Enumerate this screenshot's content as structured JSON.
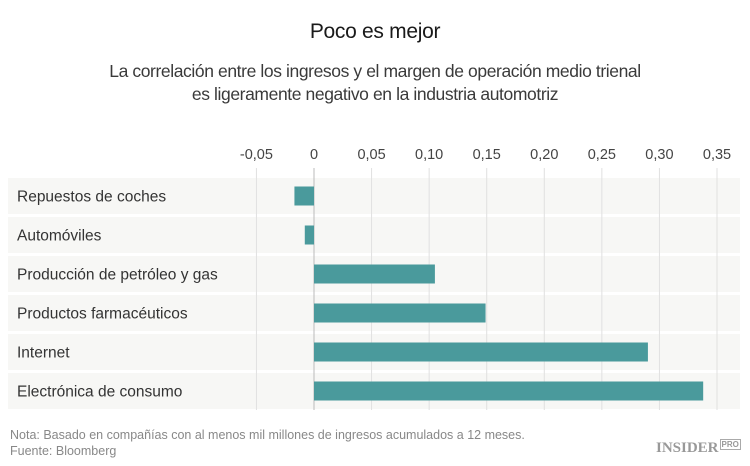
{
  "chart_data": {
    "type": "bar",
    "orientation": "horizontal",
    "title": "Poco es mejor",
    "subtitle": "La correlación entre los ingresos y el margen de operación medio trienal es ligeramente negativo en la industria automotriz",
    "categories": [
      "Repuestos de coches",
      "Automóviles",
      "Producción de petróleo y gas",
      "Productos farmacéuticos",
      "Internet",
      "Electrónica de consumo"
    ],
    "values": [
      -0.017,
      -0.008,
      0.105,
      0.149,
      0.29,
      0.338
    ],
    "xlim": [
      -0.05,
      0.35
    ],
    "ticks": [
      -0.05,
      0,
      0.05,
      0.1,
      0.15,
      0.2,
      0.25,
      0.3,
      0.35
    ],
    "tick_labels": [
      "-0,05",
      "0",
      "0,05",
      "0,10",
      "0,15",
      "0,20",
      "0,25",
      "0,30",
      "0,35"
    ],
    "axis_position": "top",
    "grid": true,
    "bar_color": "#4a9a9c",
    "row_band_color": "#f7f7f5"
  },
  "footer": {
    "note": "Nota: Basado en compañías con al menos mil millones de ingresos acumulados a 12 meses.",
    "source": "Fuente: Bloomberg"
  },
  "logo": {
    "text": "INSIDER",
    "badge": "PRO"
  }
}
